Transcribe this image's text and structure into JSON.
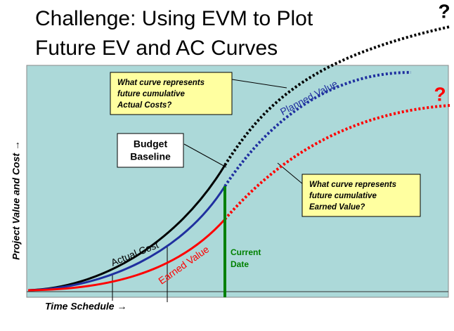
{
  "title": {
    "lines": [
      "Challenge: Using EVM to Plot",
      "Future EV and AC Curves"
    ]
  },
  "question_marks": {
    "actual_cost": "?",
    "earned_value": "?"
  },
  "callouts": {
    "actual_cost": {
      "lines": [
        "What curve represents",
        "future cumulative",
        "Actual Costs?"
      ]
    },
    "budget_baseline": {
      "lines": [
        "Budget",
        "Baseline"
      ]
    },
    "earned_value": {
      "lines": [
        "What curve represents",
        "future cumulative",
        "Earned Value?"
      ]
    }
  },
  "curve_labels": {
    "planned_value": "Planned Value",
    "actual_cost": "Actual Cost",
    "earned_value": "Earned Value"
  },
  "current_date": {
    "lines": [
      "Current",
      "Date"
    ]
  },
  "axes": {
    "y_label": "Project Value and Cost →",
    "x_label": "Time Schedule →"
  }
}
